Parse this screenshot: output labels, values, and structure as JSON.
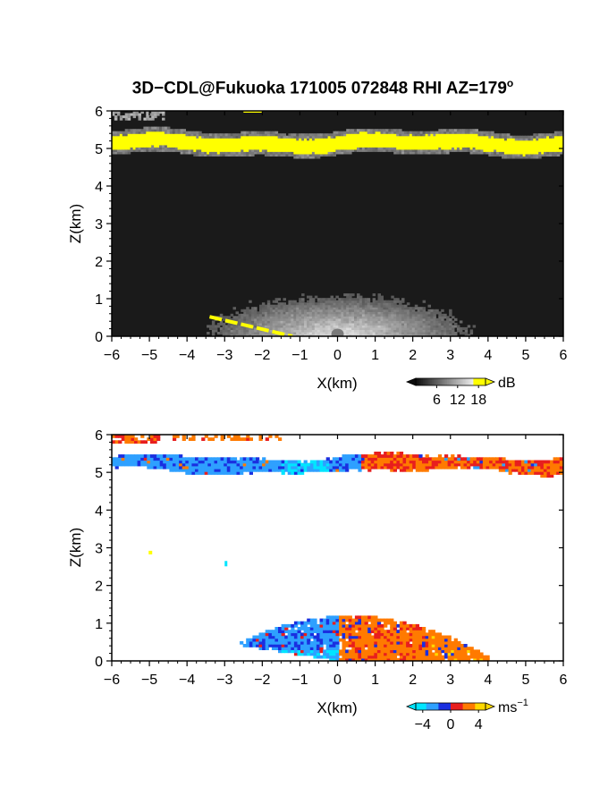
{
  "title": {
    "main": "3D−CDL@Fukuoka 171005 072848 RHI AZ=179",
    "degree_symbol": "o"
  },
  "chart_data": [
    {
      "type": "heatmap",
      "panel": "reflectivity",
      "title": "",
      "xlabel": "X(km)",
      "ylabel": "Z(km)",
      "xlim": [
        -6,
        6
      ],
      "ylim": [
        0,
        6
      ],
      "xticks": [
        "−6",
        "−5",
        "−4",
        "−3",
        "−2",
        "−1",
        "0",
        "1",
        "2",
        "3",
        "4",
        "5",
        "6"
      ],
      "yticks": [
        "0",
        "1",
        "2",
        "3",
        "4",
        "5",
        "6"
      ],
      "colorbar": {
        "unit": "dB",
        "tick_labels": [
          "6",
          "12",
          "18"
        ],
        "tick_values": [
          6,
          12,
          18
        ],
        "range": [
          0,
          20
        ],
        "colors": [
          "#000000",
          "#444444",
          "#888888",
          "#cccccc",
          "#ffffff",
          "#ffff00"
        ]
      },
      "features": [
        {
          "label": "background",
          "value_db": 4,
          "z": [
            0,
            6
          ]
        },
        {
          "label": "bright layer",
          "value_db": 19,
          "z_center": 5.15,
          "z_thickness": 0.38
        },
        {
          "label": "near-ground fan",
          "value_db": 12,
          "x": [
            -3,
            3
          ],
          "z_top": 1.1
        },
        {
          "label": "ground clutter",
          "value_db": 19,
          "x": [
            -3.4,
            -1.4
          ],
          "z": [
            0.5,
            0.0
          ]
        }
      ]
    },
    {
      "type": "heatmap",
      "panel": "doppler velocity",
      "title": "",
      "xlabel": "X(km)",
      "ylabel": "Z(km)",
      "xlim": [
        -6,
        6
      ],
      "ylim": [
        0,
        6
      ],
      "xticks": [
        "−6",
        "−5",
        "−4",
        "−3",
        "−2",
        "−1",
        "0",
        "1",
        "2",
        "3",
        "4",
        "5",
        "6"
      ],
      "yticks": [
        "0",
        "1",
        "2",
        "3",
        "4",
        "5",
        "6"
      ],
      "colorbar": {
        "unit": "ms",
        "unit_exponent": "−1",
        "tick_labels": [
          "−4",
          "0",
          "4"
        ],
        "tick_values": [
          -4,
          0,
          4
        ],
        "range": [
          -5,
          5
        ],
        "colors": [
          "#00e5ff",
          "#2ea0ff",
          "#1a2fe0",
          "#e81e1e",
          "#ff7a00",
          "#ffd800"
        ]
      },
      "features": [
        {
          "label": "upper layer",
          "x": [
            -6,
            6
          ],
          "z_center": 5.2,
          "velocity_left_ms": -2.5,
          "velocity_right_ms": 2.5
        },
        {
          "label": "boundary layer",
          "x": [
            -3.8,
            3.9
          ],
          "z": [
            0,
            1.2
          ],
          "velocity_left_ms": -3,
          "velocity_right_ms": 3.5
        }
      ]
    }
  ]
}
